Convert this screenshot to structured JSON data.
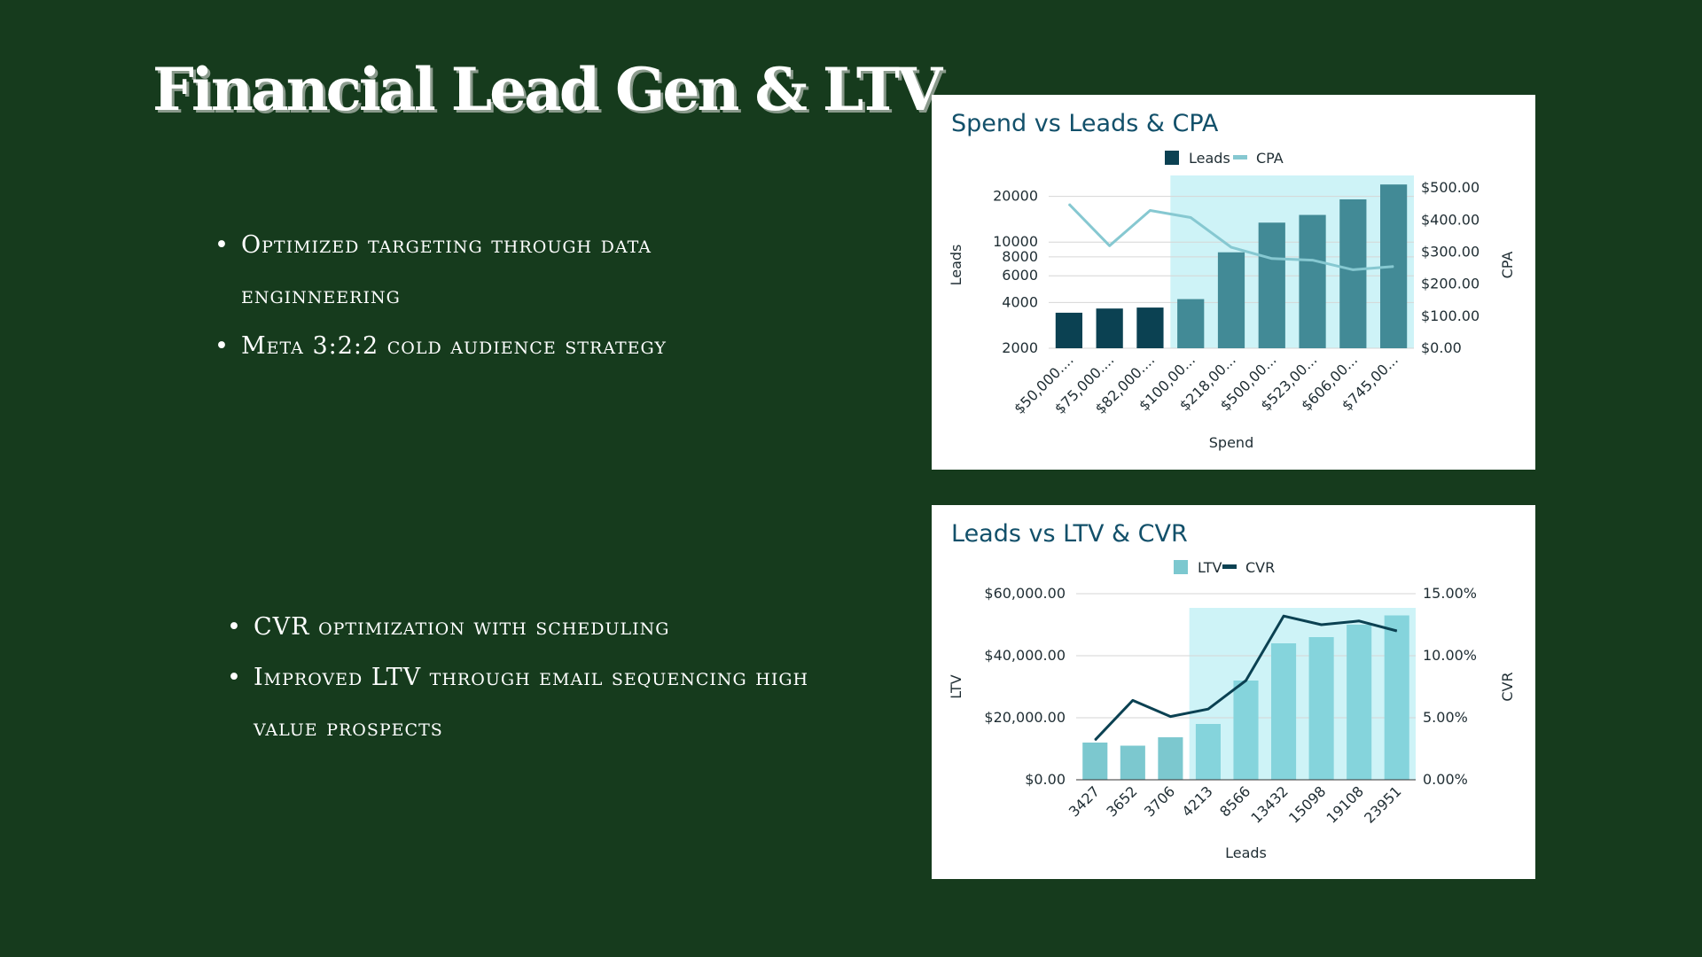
{
  "slide": {
    "title": "Financial Lead Gen & LTV",
    "bullets_top": [
      "Optimized targeting through data enginneering",
      "Meta 3:2:2 cold audience strategy"
    ],
    "bullets_bottom": [
      "CVR optimization with scheduling",
      " Improved LTV through email sequencing high value prospects"
    ]
  },
  "chart_data": [
    {
      "type": "bar",
      "title": "Spend vs Leads & CPA",
      "xlabel": "Spend",
      "ylabel": "Leads",
      "y2label": "CPA",
      "legend": {
        "position": "top-center",
        "entries": [
          "Leads",
          "CPA"
        ]
      },
      "categories": [
        "$50,000....",
        "$75,000....",
        "$82,000....",
        "$100,00...",
        "$218,00...",
        "$500,00...",
        "$523,00...",
        "$606,00...",
        "$745,00..."
      ],
      "series": [
        {
          "name": "Leads",
          "kind": "bar",
          "axis": "left",
          "values": [
            3427,
            3652,
            3706,
            4213,
            8566,
            13432,
            15098,
            19108,
            23951
          ]
        },
        {
          "name": "CPA",
          "kind": "line",
          "axis": "right",
          "values": [
            450,
            320,
            430,
            408,
            315,
            280,
            275,
            245,
            255
          ]
        }
      ],
      "y_scale": "log",
      "ylim": [
        2000,
        25000
      ],
      "y_ticks": [
        2000,
        4000,
        6000,
        8000,
        10000,
        20000
      ],
      "y2lim": [
        0,
        520
      ],
      "y2_ticks": [
        "$0.00",
        "$100.00",
        "$200.00",
        "$300.00",
        "$400.00",
        "$500.00"
      ],
      "highlight_from_category_index": 3,
      "colors": {
        "bar_dark": "#0b4152",
        "bar_highlight": "#428a96",
        "line": "#86c8d1",
        "highlight_band": "#cef3f7",
        "grid": "#d6d6d6"
      },
      "grid": true
    },
    {
      "type": "bar",
      "title": "Leads vs LTV & CVR",
      "xlabel": "Leads",
      "ylabel": "LTV",
      "y2label": "CVR",
      "legend": {
        "position": "top-center",
        "entries": [
          "LTV",
          "CVR"
        ]
      },
      "categories": [
        "3427",
        "3652",
        "3706",
        "4213",
        "8566",
        "13432",
        "15098",
        "19108",
        "23951"
      ],
      "series": [
        {
          "name": "LTV",
          "kind": "bar",
          "axis": "left",
          "values": [
            12000,
            11000,
            13700,
            18000,
            32000,
            44000,
            46000,
            50000,
            53000
          ]
        },
        {
          "name": "CVR",
          "kind": "line",
          "axis": "right",
          "values": [
            3.2,
            6.4,
            5.1,
            5.7,
            8.0,
            13.2,
            12.5,
            12.8,
            12.0
          ]
        }
      ],
      "ylim": [
        0,
        60000
      ],
      "y_ticks": [
        "$0.00",
        "$20,000.00",
        "$40,000.00",
        "$60,000.00"
      ],
      "y2lim": [
        0,
        15
      ],
      "y2_ticks": [
        "0.00%",
        "5.00%",
        "10.00%",
        "15.00%"
      ],
      "highlight_from_category_index": 3,
      "colors": {
        "bar": "#7cc8cf",
        "bar_highlight": "#85d4dc",
        "line": "#0b4152",
        "highlight_band": "#cef3f7",
        "grid": "#d6d6d6"
      },
      "grid": true
    }
  ]
}
